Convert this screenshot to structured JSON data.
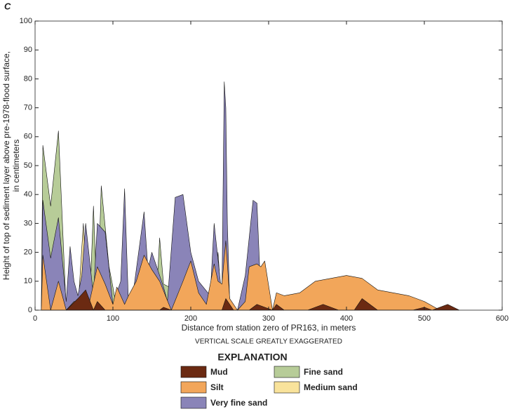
{
  "chart_data": {
    "type": "area",
    "panel_label": "C",
    "x_label": "Distance from station zero of PR163, in meters",
    "y_label": [
      "Height of top of sediment layer above pre-1978-flood surface,",
      "in centimeters"
    ],
    "note": "VERTICAL SCALE GREATLY EXAGGERATED",
    "legend_title": "EXPLANATION",
    "xlim": [
      0,
      600
    ],
    "xticks": [
      0,
      100,
      200,
      300,
      400,
      500,
      600
    ],
    "ylim": [
      0,
      100
    ],
    "yticks": [
      0,
      10,
      20,
      30,
      40,
      50,
      60,
      70,
      80,
      90,
      100
    ],
    "series": [
      {
        "name": "Mud",
        "color": "#6b2a12",
        "x": [
          40,
          55,
          65,
          75,
          80,
          90,
          160,
          165,
          175,
          240,
          245,
          255,
          275,
          285,
          295,
          305,
          310,
          320,
          350,
          370,
          390,
          410,
          420,
          440,
          485,
          500,
          510,
          530,
          545
        ],
        "values": [
          0,
          4,
          7,
          0,
          3,
          0,
          0,
          1,
          0,
          0,
          4,
          0,
          0,
          2,
          1,
          0,
          2,
          0,
          0,
          2,
          0,
          0,
          4,
          0,
          0,
          1,
          0,
          2,
          0
        ]
      },
      {
        "name": "Silt",
        "color": "#f2a65a",
        "x": [
          8,
          10,
          20,
          30,
          40,
          50,
          60,
          70,
          80,
          90,
          100,
          105,
          115,
          120,
          130,
          140,
          150,
          160,
          175,
          190,
          200,
          210,
          220,
          230,
          235,
          240,
          245,
          250,
          260,
          270,
          275,
          285,
          290,
          295,
          305,
          310,
          320,
          340,
          360,
          380,
          400,
          420,
          440,
          460,
          480,
          500,
          520
        ],
        "values": [
          0,
          19,
          0,
          10,
          0,
          3,
          3,
          3,
          15,
          9,
          2,
          8,
          2,
          5,
          10,
          19,
          14,
          10,
          0,
          10,
          17,
          6,
          2,
          16,
          10,
          9,
          24,
          4,
          0,
          3,
          15,
          16,
          15,
          17,
          0,
          6,
          5,
          6,
          10,
          11,
          12,
          11,
          7,
          6,
          5,
          3,
          0
        ]
      },
      {
        "name": "Very fine sand",
        "color": "#8a84b8",
        "x": [
          8,
          10,
          20,
          30,
          40,
          45,
          50,
          55,
          60,
          65,
          75,
          80,
          90,
          100,
          110,
          115,
          120,
          125,
          140,
          145,
          150,
          165,
          170,
          180,
          190,
          200,
          210,
          225,
          230,
          240,
          243,
          245,
          247,
          250,
          260,
          270,
          280,
          285,
          290
        ],
        "values": [
          0,
          38,
          18,
          32,
          3,
          22,
          10,
          5,
          12,
          30,
          5,
          30,
          27,
          2,
          10,
          42,
          2,
          4,
          34,
          14,
          20,
          8,
          3,
          39,
          40,
          20,
          10,
          5,
          30,
          5,
          79,
          70,
          30,
          3,
          0,
          12,
          38,
          37,
          5
        ]
      },
      {
        "name": "Fine sand",
        "color": "#b7cc98",
        "x": [
          8,
          10,
          20,
          30,
          40,
          70,
          75,
          80,
          85,
          95,
          100,
          105,
          155,
          160,
          165,
          230,
          235,
          240
        ],
        "values": [
          0,
          57,
          36,
          62,
          0,
          0,
          36,
          0,
          43,
          15,
          8,
          0,
          0,
          25,
          9,
          0,
          20,
          0
        ]
      },
      {
        "name": "Medium sand",
        "color": "#f9e39b",
        "x": [
          55,
          62,
          68
        ],
        "values": [
          0,
          30,
          0
        ]
      }
    ]
  }
}
